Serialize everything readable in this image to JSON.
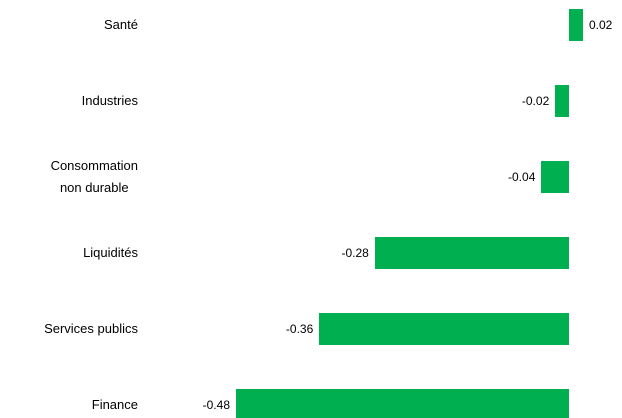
{
  "chart_data": {
    "type": "barh",
    "categories": [
      "Santé",
      "Industries",
      "Consommation\nnon durable",
      "Liquidités",
      "Services publics",
      "Finance"
    ],
    "values": [
      0.02,
      -0.02,
      -0.04,
      -0.28,
      -0.36,
      -0.48
    ],
    "color": "#00b050"
  }
}
